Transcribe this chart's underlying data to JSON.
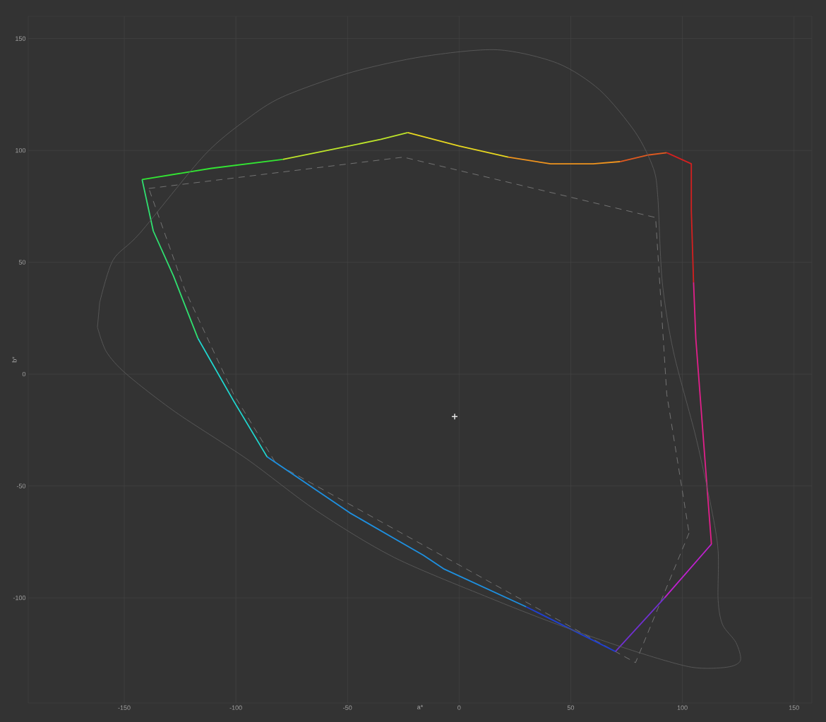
{
  "chart_data": {
    "type": "line",
    "xlabel": "a*",
    "ylabel": "b*",
    "xlim": [
      -193,
      158
    ],
    "ylim": [
      -147,
      160
    ],
    "xticks": [
      -150,
      -100,
      -50,
      0,
      50,
      100,
      150
    ],
    "yticks": [
      -100,
      -50,
      0,
      50,
      100,
      150
    ],
    "grid": true,
    "marker": "none",
    "series": [
      {
        "color": "#7a7a7a",
        "line_style": "dashed",
        "x": [
          -139,
          -25,
          88,
          93,
          103
        ],
        "values": [
          83,
          97,
          70,
          -9,
          -71
        ]
      },
      {
        "color": "#7a7a7a",
        "line_style": "dashed",
        "x": [
          103,
          79,
          -82,
          -101,
          -123,
          -139
        ],
        "values": [
          -71,
          -129,
          -40,
          -9,
          38,
          83
        ]
      },
      {
        "color": "#33e633",
        "line_style": "solid",
        "x": [
          -142,
          -111,
          -79
        ],
        "values": [
          87,
          92,
          96
        ]
      },
      {
        "color": "#bde52a",
        "line_style": "solid",
        "x": [
          -79,
          -54,
          -35,
          -23
        ],
        "values": [
          96,
          101,
          105,
          108
        ]
      },
      {
        "color": "#e8d820",
        "line_style": "solid",
        "x": [
          -23,
          0,
          22
        ],
        "values": [
          108,
          102,
          97
        ]
      },
      {
        "color": "#f0941e",
        "line_style": "solid",
        "x": [
          22,
          41,
          60,
          72
        ],
        "values": [
          97,
          94,
          94,
          95
        ]
      },
      {
        "color": "#e05a20",
        "line_style": "solid",
        "x": [
          72,
          85,
          93
        ],
        "values": [
          95,
          98,
          99
        ]
      },
      {
        "color": "#d42020",
        "line_style": "solid",
        "x": [
          93,
          104,
          104,
          105
        ],
        "values": [
          99,
          94,
          73,
          41
        ]
      },
      {
        "color": "#e0208a",
        "line_style": "solid",
        "x": [
          105,
          106,
          111,
          113
        ],
        "values": [
          41,
          16,
          -50,
          -76
        ]
      },
      {
        "color": "#c020d0",
        "line_style": "solid",
        "x": [
          113,
          92
        ],
        "values": [
          -76,
          -100
        ]
      },
      {
        "color": "#7030d0",
        "line_style": "solid",
        "x": [
          92,
          70
        ],
        "values": [
          -100,
          -124
        ]
      },
      {
        "color": "#2040d0",
        "line_style": "solid",
        "x": [
          70,
          30
        ],
        "values": [
          -124,
          -104
        ]
      },
      {
        "color": "#1e90e0",
        "line_style": "solid",
        "x": [
          30,
          -7,
          -16,
          -49,
          -86
        ],
        "values": [
          -104,
          -87,
          -81,
          -62,
          -37
        ]
      },
      {
        "color": "#20d8d0",
        "line_style": "solid",
        "x": [
          -86,
          -101,
          -117
        ],
        "values": [
          -37,
          -12,
          16
        ]
      },
      {
        "color": "#30e070",
        "line_style": "solid",
        "x": [
          -117,
          -128,
          -137,
          -142
        ],
        "values": [
          16,
          44,
          64,
          87
        ]
      },
      {
        "type": "scatter",
        "color": "#e6e6e6",
        "marker": "cross",
        "x": [
          -2
        ],
        "values": [
          -19
        ]
      }
    ]
  }
}
